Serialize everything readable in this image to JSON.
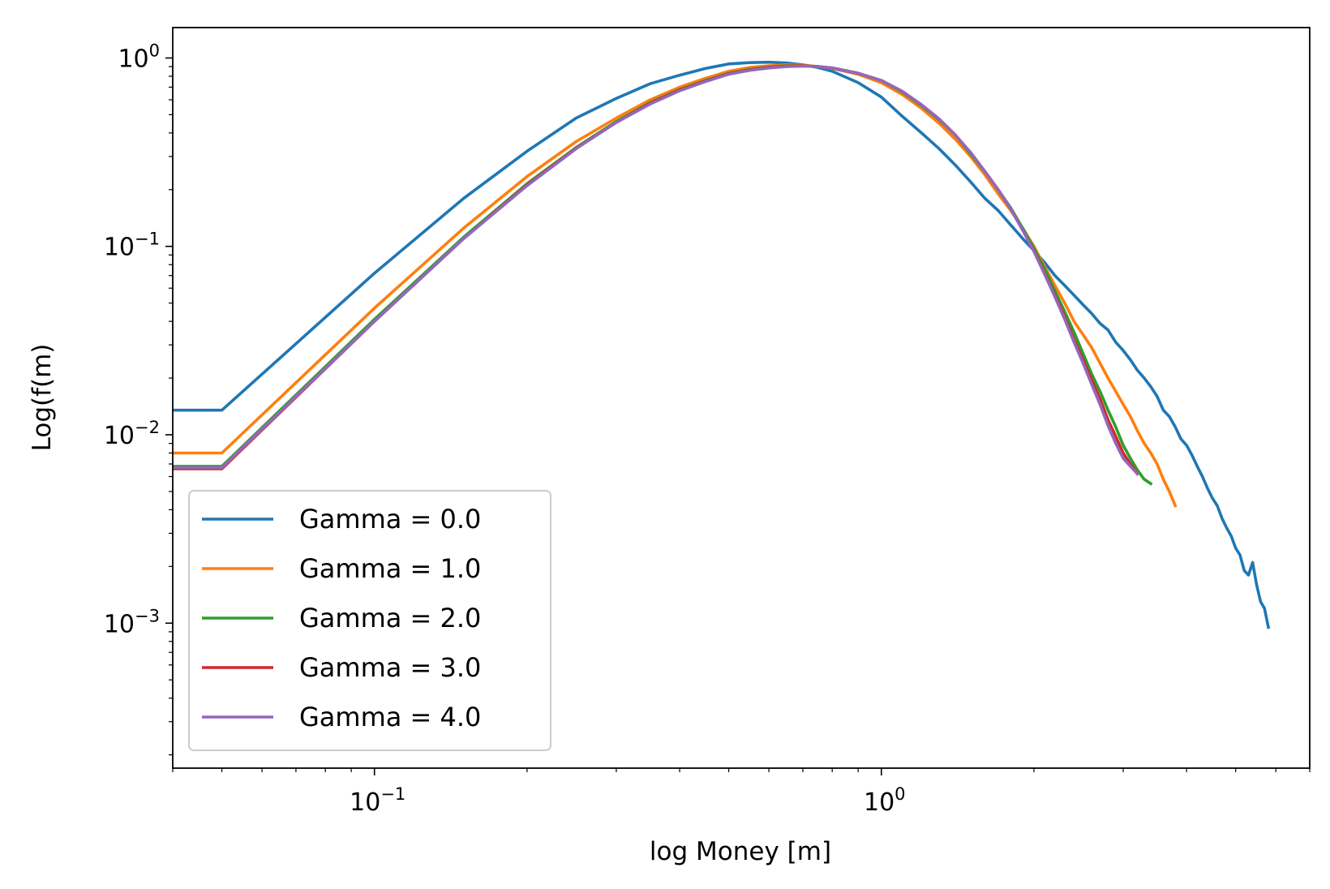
{
  "chart_data": {
    "type": "line",
    "title": "",
    "xlabel": "log Money [m]",
    "ylabel": "Log(f(m)",
    "xscale": "log",
    "yscale": "log",
    "xlim": [
      0.04,
      7.0
    ],
    "ylim": [
      0.00017,
      1.45
    ],
    "x_ticks": [
      {
        "value": 0.1,
        "base": "10",
        "exp": "−1"
      },
      {
        "value": 1.0,
        "base": "10",
        "exp": "0"
      }
    ],
    "y_ticks": [
      {
        "value": 1.0,
        "base": "10",
        "exp": "0"
      },
      {
        "value": 0.1,
        "base": "10",
        "exp": "−1"
      },
      {
        "value": 0.01,
        "base": "10",
        "exp": "−2"
      },
      {
        "value": 0.001,
        "base": "10",
        "exp": "−3"
      }
    ],
    "grid": false,
    "legend_position": "lower-left",
    "series": [
      {
        "name": "Gamma = 0.0",
        "color": "#1f77b4",
        "x": [
          0.04,
          0.05,
          0.1,
          0.15,
          0.2,
          0.25,
          0.3,
          0.35,
          0.4,
          0.45,
          0.5,
          0.55,
          0.6,
          0.65,
          0.7,
          0.75,
          0.8,
          0.9,
          1.0,
          1.1,
          1.2,
          1.3,
          1.4,
          1.5,
          1.6,
          1.7,
          1.8,
          1.9,
          2.0,
          2.1,
          2.2,
          2.3,
          2.4,
          2.5,
          2.6,
          2.7,
          2.8,
          2.9,
          3.0,
          3.1,
          3.2,
          3.3,
          3.4,
          3.5,
          3.6,
          3.7,
          3.8,
          3.9,
          4.0,
          4.1,
          4.2,
          4.3,
          4.4,
          4.5,
          4.6,
          4.7,
          4.8,
          4.9,
          5.0,
          5.1,
          5.2,
          5.3,
          5.4,
          5.5,
          5.6,
          5.7,
          5.8
        ],
        "y": [
          0.0135,
          0.0135,
          0.072,
          0.18,
          0.32,
          0.48,
          0.61,
          0.73,
          0.81,
          0.88,
          0.93,
          0.945,
          0.95,
          0.94,
          0.92,
          0.89,
          0.85,
          0.74,
          0.62,
          0.49,
          0.4,
          0.33,
          0.27,
          0.22,
          0.18,
          0.155,
          0.13,
          0.11,
          0.095,
          0.082,
          0.07,
          0.062,
          0.055,
          0.049,
          0.044,
          0.039,
          0.036,
          0.031,
          0.028,
          0.025,
          0.022,
          0.02,
          0.018,
          0.016,
          0.0135,
          0.0125,
          0.011,
          0.0095,
          0.0088,
          0.0078,
          0.0068,
          0.006,
          0.0052,
          0.0046,
          0.0042,
          0.0036,
          0.0032,
          0.0029,
          0.0025,
          0.0023,
          0.0019,
          0.0018,
          0.0021,
          0.0016,
          0.0013,
          0.0012,
          0.00095
        ]
      },
      {
        "name": "Gamma = 1.0",
        "color": "#ff7f0e",
        "x": [
          0.04,
          0.05,
          0.1,
          0.15,
          0.2,
          0.25,
          0.3,
          0.35,
          0.4,
          0.45,
          0.5,
          0.55,
          0.6,
          0.65,
          0.7,
          0.75,
          0.8,
          0.9,
          1.0,
          1.1,
          1.2,
          1.3,
          1.4,
          1.5,
          1.6,
          1.7,
          1.8,
          1.9,
          2.0,
          2.1,
          2.2,
          2.3,
          2.4,
          2.5,
          2.6,
          2.7,
          2.8,
          2.9,
          3.0,
          3.1,
          3.2,
          3.3,
          3.4,
          3.5,
          3.6,
          3.7,
          3.8
        ],
        "y": [
          0.008,
          0.008,
          0.047,
          0.125,
          0.235,
          0.36,
          0.48,
          0.6,
          0.7,
          0.78,
          0.85,
          0.89,
          0.91,
          0.92,
          0.915,
          0.9,
          0.88,
          0.82,
          0.74,
          0.64,
          0.54,
          0.45,
          0.37,
          0.3,
          0.24,
          0.19,
          0.155,
          0.125,
          0.1,
          0.078,
          0.062,
          0.05,
          0.04,
          0.034,
          0.029,
          0.024,
          0.02,
          0.017,
          0.0145,
          0.0125,
          0.0105,
          0.009,
          0.008,
          0.007,
          0.0058,
          0.005,
          0.0042
        ]
      },
      {
        "name": "Gamma = 2.0",
        "color": "#2ca02c",
        "x": [
          0.04,
          0.05,
          0.1,
          0.15,
          0.2,
          0.25,
          0.3,
          0.35,
          0.4,
          0.45,
          0.5,
          0.55,
          0.6,
          0.65,
          0.7,
          0.75,
          0.8,
          0.9,
          1.0,
          1.1,
          1.2,
          1.3,
          1.4,
          1.5,
          1.6,
          1.7,
          1.8,
          1.9,
          2.0,
          2.1,
          2.2,
          2.3,
          2.4,
          2.5,
          2.6,
          2.7,
          2.8,
          2.9,
          3.0,
          3.1,
          3.2,
          3.3,
          3.4
        ],
        "y": [
          0.0068,
          0.0068,
          0.041,
          0.112,
          0.215,
          0.335,
          0.46,
          0.58,
          0.68,
          0.76,
          0.83,
          0.87,
          0.895,
          0.91,
          0.91,
          0.9,
          0.885,
          0.83,
          0.76,
          0.66,
          0.56,
          0.47,
          0.39,
          0.31,
          0.25,
          0.2,
          0.16,
          0.125,
          0.098,
          0.076,
          0.058,
          0.045,
          0.035,
          0.027,
          0.021,
          0.017,
          0.0135,
          0.011,
          0.0088,
          0.0075,
          0.0065,
          0.0058,
          0.0055
        ]
      },
      {
        "name": "Gamma = 3.0",
        "color": "#d62728",
        "x": [
          0.04,
          0.05,
          0.1,
          0.15,
          0.2,
          0.25,
          0.3,
          0.35,
          0.4,
          0.45,
          0.5,
          0.55,
          0.6,
          0.65,
          0.7,
          0.75,
          0.8,
          0.9,
          1.0,
          1.1,
          1.2,
          1.3,
          1.4,
          1.5,
          1.6,
          1.7,
          1.8,
          1.9,
          2.0,
          2.1,
          2.2,
          2.3,
          2.4,
          2.5,
          2.6,
          2.7,
          2.8,
          2.9,
          3.0,
          3.1,
          3.2
        ],
        "y": [
          0.0066,
          0.0066,
          0.04,
          0.11,
          0.212,
          0.332,
          0.455,
          0.575,
          0.675,
          0.755,
          0.825,
          0.865,
          0.89,
          0.905,
          0.908,
          0.9,
          0.885,
          0.83,
          0.76,
          0.665,
          0.565,
          0.475,
          0.39,
          0.315,
          0.25,
          0.2,
          0.158,
          0.122,
          0.095,
          0.072,
          0.055,
          0.042,
          0.032,
          0.025,
          0.0195,
          0.0155,
          0.012,
          0.0098,
          0.008,
          0.007,
          0.0062
        ]
      },
      {
        "name": "Gamma = 4.0",
        "color": "#9467bd",
        "x": [
          0.04,
          0.05,
          0.1,
          0.15,
          0.2,
          0.25,
          0.3,
          0.35,
          0.4,
          0.45,
          0.5,
          0.55,
          0.6,
          0.65,
          0.7,
          0.75,
          0.8,
          0.9,
          1.0,
          1.1,
          1.2,
          1.3,
          1.4,
          1.5,
          1.6,
          1.7,
          1.8,
          1.9,
          2.0,
          2.1,
          2.2,
          2.3,
          2.4,
          2.5,
          2.6,
          2.7,
          2.8,
          2.9,
          3.0,
          3.1,
          3.2
        ],
        "y": [
          0.0067,
          0.0067,
          0.04,
          0.11,
          0.21,
          0.33,
          0.455,
          0.57,
          0.67,
          0.75,
          0.82,
          0.86,
          0.885,
          0.9,
          0.905,
          0.9,
          0.885,
          0.83,
          0.76,
          0.665,
          0.565,
          0.475,
          0.39,
          0.315,
          0.25,
          0.2,
          0.158,
          0.122,
          0.094,
          0.071,
          0.054,
          0.041,
          0.031,
          0.024,
          0.0185,
          0.0145,
          0.0112,
          0.009,
          0.0075,
          0.0068,
          0.0062
        ]
      }
    ]
  }
}
